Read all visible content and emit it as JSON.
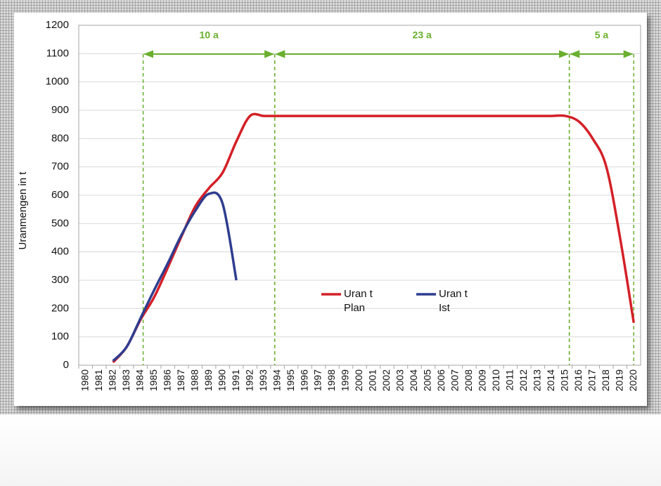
{
  "chart_data": {
    "type": "line",
    "y_label": "Uranmengen in t",
    "categories": [
      "1980",
      "1981",
      "1982",
      "1983",
      "1984",
      "1985",
      "1986",
      "1987",
      "1988",
      "1989",
      "1990",
      "1991",
      "1992",
      "1993",
      "1994",
      "1995",
      "1996",
      "1997",
      "1998",
      "1999",
      "2000",
      "2001",
      "2002",
      "2003",
      "2004",
      "2005",
      "2006",
      "2007",
      "2008",
      "2009",
      "2010",
      "2011",
      "2012",
      "2013",
      "2014",
      "2015",
      "2016",
      "2017",
      "2018",
      "2019",
      "2020"
    ],
    "series": [
      {
        "name": "Uran t Plan",
        "color": "#d42027",
        "values": [
          null,
          null,
          10,
          65,
          160,
          240,
          345,
          455,
          560,
          625,
          680,
          790,
          880,
          880,
          880,
          880,
          880,
          880,
          880,
          880,
          880,
          880,
          880,
          880,
          880,
          880,
          880,
          880,
          880,
          880,
          880,
          880,
          880,
          880,
          880,
          880,
          860,
          800,
          700,
          450,
          150
        ]
      },
      {
        "name": "Uran t Ist",
        "color": "#2e3d8f",
        "values": [
          null,
          null,
          15,
          65,
          165,
          265,
          360,
          460,
          545,
          605,
          570,
          300,
          null,
          null,
          null,
          null,
          null,
          null,
          null,
          null,
          null,
          null,
          null,
          null,
          null,
          null,
          null,
          null,
          null,
          null,
          null,
          null,
          null,
          null,
          null,
          null,
          null,
          null,
          null,
          null,
          null
        ]
      }
    ],
    "spans": [
      {
        "label": "10 a",
        "start": 1984.2,
        "end": 1993.8
      },
      {
        "label": "23 a",
        "start": 1993.8,
        "end": 2015.3
      },
      {
        "label": "5 a",
        "start": 2015.3,
        "end": 2020
      }
    ],
    "ylim": [
      0,
      1200
    ],
    "yticks": [
      0,
      100,
      200,
      300,
      400,
      500,
      600,
      700,
      800,
      900,
      1000,
      1100,
      1200
    ],
    "grid": true
  }
}
